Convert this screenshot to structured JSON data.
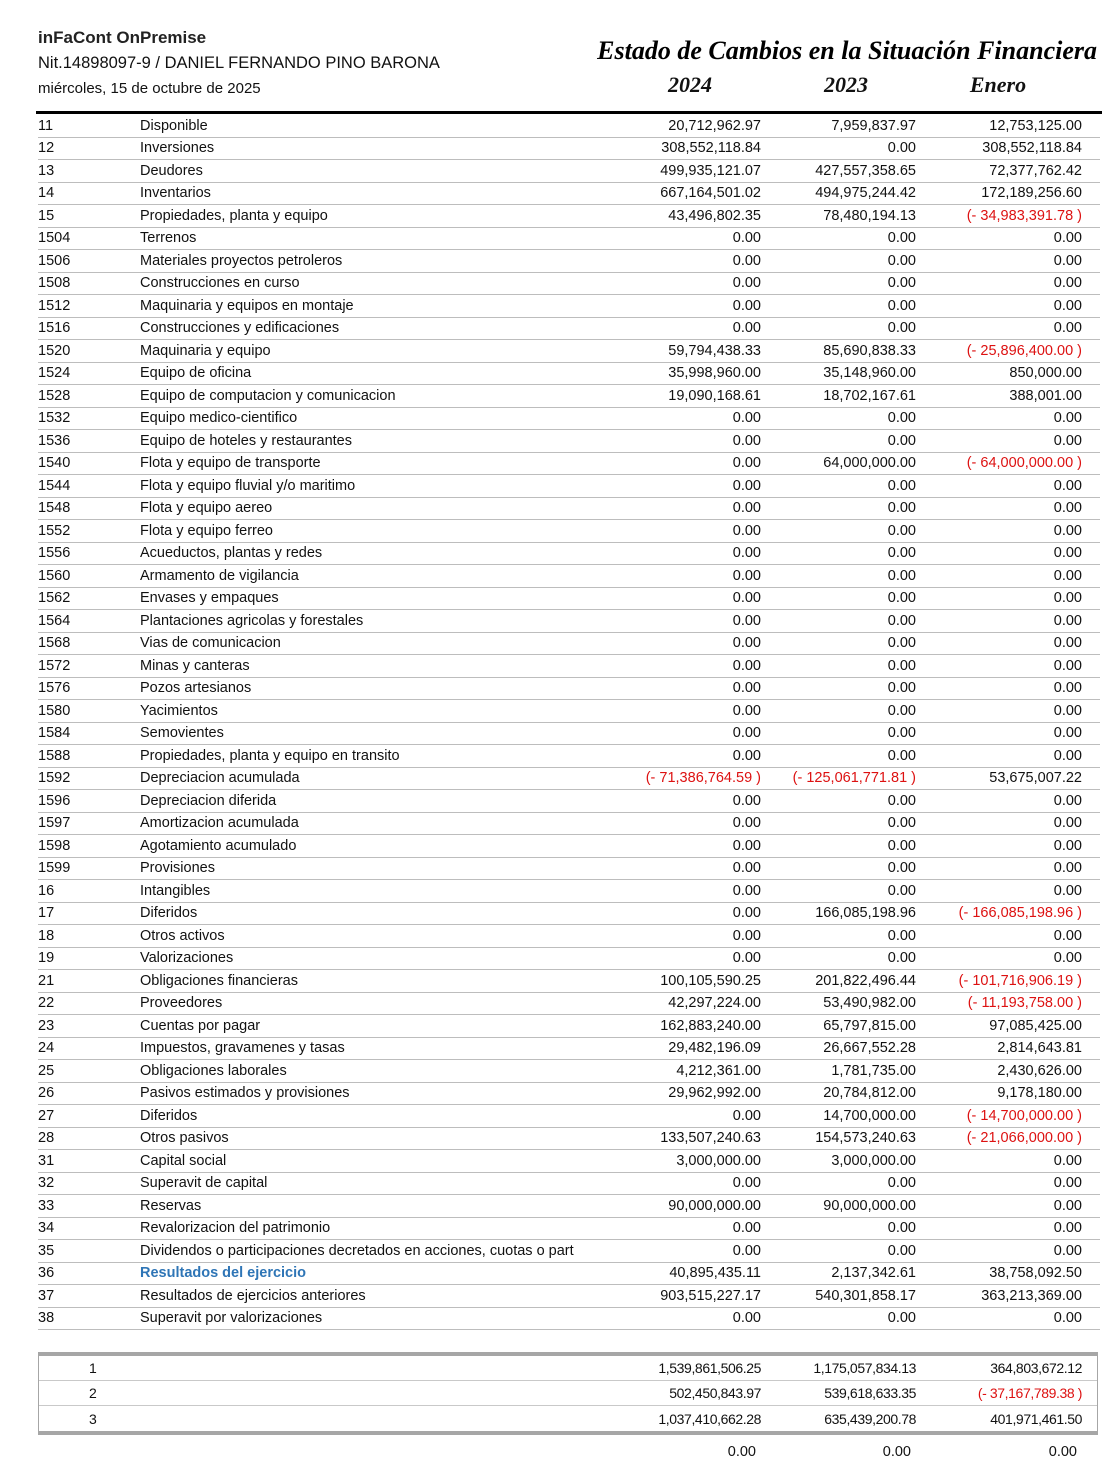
{
  "header": {
    "app_title": "inFaCont OnPremise",
    "owner_line": "Nit.14898097-9 / DANIEL FERNANDO PINO BARONA",
    "date_line": "miércoles, 15 de octubre de 2025",
    "report_title": "Estado de Cambios en la Situación Financiera",
    "columns": [
      "2024",
      "2023",
      "Enero"
    ]
  },
  "colors": {
    "negative": "#dd1111",
    "highlight_blue": "#2e75b6"
  },
  "rows": [
    {
      "code": "11",
      "name": "Disponible",
      "values": [
        "20,712,962.97",
        "7,959,837.97",
        "12,753,125.00"
      ]
    },
    {
      "code": "12",
      "name": "Inversiones",
      "values": [
        "308,552,118.84",
        "0.00",
        "308,552,118.84"
      ]
    },
    {
      "code": "13",
      "name": "Deudores",
      "values": [
        "499,935,121.07",
        "427,557,358.65",
        "72,377,762.42"
      ]
    },
    {
      "code": "14",
      "name": "Inventarios",
      "values": [
        "667,164,501.02",
        "494,975,244.42",
        "172,189,256.60"
      ]
    },
    {
      "code": "15",
      "name": "Propiedades, planta y equipo",
      "values": [
        "43,496,802.35",
        "78,480,194.13",
        "(- 34,983,391.78 )"
      ]
    },
    {
      "code": "1504",
      "name": "Terrenos",
      "values": [
        "0.00",
        "0.00",
        "0.00"
      ]
    },
    {
      "code": "1506",
      "name": "Materiales proyectos petroleros",
      "values": [
        "0.00",
        "0.00",
        "0.00"
      ]
    },
    {
      "code": "1508",
      "name": "Construcciones en curso",
      "values": [
        "0.00",
        "0.00",
        "0.00"
      ]
    },
    {
      "code": "1512",
      "name": "Maquinaria y equipos en montaje",
      "values": [
        "0.00",
        "0.00",
        "0.00"
      ]
    },
    {
      "code": "1516",
      "name": "Construcciones y edificaciones",
      "values": [
        "0.00",
        "0.00",
        "0.00"
      ]
    },
    {
      "code": "1520",
      "name": "Maquinaria y equipo",
      "values": [
        "59,794,438.33",
        "85,690,838.33",
        "(- 25,896,400.00 )"
      ]
    },
    {
      "code": "1524",
      "name": "Equipo de oficina",
      "values": [
        "35,998,960.00",
        "35,148,960.00",
        "850,000.00"
      ]
    },
    {
      "code": "1528",
      "name": "Equipo de computacion y comunicacion",
      "values": [
        "19,090,168.61",
        "18,702,167.61",
        "388,001.00"
      ]
    },
    {
      "code": "1532",
      "name": "Equipo medico-cientifico",
      "values": [
        "0.00",
        "0.00",
        "0.00"
      ]
    },
    {
      "code": "1536",
      "name": "Equipo de hoteles y restaurantes",
      "values": [
        "0.00",
        "0.00",
        "0.00"
      ]
    },
    {
      "code": "1540",
      "name": "Flota y equipo de transporte",
      "values": [
        "0.00",
        "64,000,000.00",
        "(- 64,000,000.00 )"
      ]
    },
    {
      "code": "1544",
      "name": "Flota y equipo fluvial y/o maritimo",
      "values": [
        "0.00",
        "0.00",
        "0.00"
      ]
    },
    {
      "code": "1548",
      "name": "Flota y equipo aereo",
      "values": [
        "0.00",
        "0.00",
        "0.00"
      ]
    },
    {
      "code": "1552",
      "name": "Flota y equipo ferreo",
      "values": [
        "0.00",
        "0.00",
        "0.00"
      ]
    },
    {
      "code": "1556",
      "name": "Acueductos, plantas y redes",
      "values": [
        "0.00",
        "0.00",
        "0.00"
      ]
    },
    {
      "code": "1560",
      "name": "Armamento de vigilancia",
      "values": [
        "0.00",
        "0.00",
        "0.00"
      ]
    },
    {
      "code": "1562",
      "name": "Envases y empaques",
      "values": [
        "0.00",
        "0.00",
        "0.00"
      ]
    },
    {
      "code": "1564",
      "name": "Plantaciones agricolas y forestales",
      "values": [
        "0.00",
        "0.00",
        "0.00"
      ]
    },
    {
      "code": "1568",
      "name": "Vias de comunicacion",
      "values": [
        "0.00",
        "0.00",
        "0.00"
      ]
    },
    {
      "code": "1572",
      "name": "Minas y canteras",
      "values": [
        "0.00",
        "0.00",
        "0.00"
      ]
    },
    {
      "code": "1576",
      "name": "Pozos artesianos",
      "values": [
        "0.00",
        "0.00",
        "0.00"
      ]
    },
    {
      "code": "1580",
      "name": "Yacimientos",
      "values": [
        "0.00",
        "0.00",
        "0.00"
      ]
    },
    {
      "code": "1584",
      "name": "Semovientes",
      "values": [
        "0.00",
        "0.00",
        "0.00"
      ]
    },
    {
      "code": "1588",
      "name": "Propiedades, planta y equipo en transito",
      "values": [
        "0.00",
        "0.00",
        "0.00"
      ]
    },
    {
      "code": "1592",
      "name": "Depreciacion acumulada",
      "values": [
        "(- 71,386,764.59 )",
        "(- 125,061,771.81 )",
        "53,675,007.22"
      ]
    },
    {
      "code": "1596",
      "name": "Depreciacion diferida",
      "values": [
        "0.00",
        "0.00",
        "0.00"
      ]
    },
    {
      "code": "1597",
      "name": "Amortizacion acumulada",
      "values": [
        "0.00",
        "0.00",
        "0.00"
      ]
    },
    {
      "code": "1598",
      "name": "Agotamiento acumulado",
      "values": [
        "0.00",
        "0.00",
        "0.00"
      ]
    },
    {
      "code": "1599",
      "name": "Provisiones",
      "values": [
        "0.00",
        "0.00",
        "0.00"
      ]
    },
    {
      "code": "16",
      "name": "Intangibles",
      "values": [
        "0.00",
        "0.00",
        "0.00"
      ]
    },
    {
      "code": "17",
      "name": "Diferidos",
      "values": [
        "0.00",
        "166,085,198.96",
        "(- 166,085,198.96 )"
      ]
    },
    {
      "code": "18",
      "name": "Otros activos",
      "values": [
        "0.00",
        "0.00",
        "0.00"
      ]
    },
    {
      "code": "19",
      "name": "Valorizaciones",
      "values": [
        "0.00",
        "0.00",
        "0.00"
      ]
    },
    {
      "code": "21",
      "name": "Obligaciones financieras",
      "values": [
        "100,105,590.25",
        "201,822,496.44",
        "(- 101,716,906.19 )"
      ]
    },
    {
      "code": "22",
      "name": "Proveedores",
      "values": [
        "42,297,224.00",
        "53,490,982.00",
        "(- 11,193,758.00 )"
      ]
    },
    {
      "code": "23",
      "name": "Cuentas por pagar",
      "values": [
        "162,883,240.00",
        "65,797,815.00",
        "97,085,425.00"
      ]
    },
    {
      "code": "24",
      "name": "Impuestos, gravamenes y tasas",
      "values": [
        "29,482,196.09",
        "26,667,552.28",
        "2,814,643.81"
      ]
    },
    {
      "code": "25",
      "name": "Obligaciones laborales",
      "values": [
        "4,212,361.00",
        "1,781,735.00",
        "2,430,626.00"
      ]
    },
    {
      "code": "26",
      "name": "Pasivos estimados y provisiones",
      "values": [
        "29,962,992.00",
        "20,784,812.00",
        "9,178,180.00"
      ]
    },
    {
      "code": "27",
      "name": "Diferidos",
      "values": [
        "0.00",
        "14,700,000.00",
        "(- 14,700,000.00 )"
      ]
    },
    {
      "code": "28",
      "name": "Otros pasivos",
      "values": [
        "133,507,240.63",
        "154,573,240.63",
        "(- 21,066,000.00 )"
      ]
    },
    {
      "code": "31",
      "name": "Capital social",
      "values": [
        "3,000,000.00",
        "3,000,000.00",
        "0.00"
      ]
    },
    {
      "code": "32",
      "name": "Superavit de capital",
      "values": [
        "0.00",
        "0.00",
        "0.00"
      ]
    },
    {
      "code": "33",
      "name": "Reservas",
      "values": [
        "90,000,000.00",
        "90,000,000.00",
        "0.00"
      ]
    },
    {
      "code": "34",
      "name": "Revalorizacion del patrimonio",
      "values": [
        "0.00",
        "0.00",
        "0.00"
      ]
    },
    {
      "code": "35",
      "name": "Dividendos o participaciones decretados en acciones, cuotas o part",
      "values": [
        "0.00",
        "0.00",
        "0.00"
      ]
    },
    {
      "code": "36",
      "name": "Resultados del ejercicio",
      "highlight": true,
      "values": [
        "40,895,435.11",
        "2,137,342.61",
        "38,758,092.50"
      ]
    },
    {
      "code": "37",
      "name": "Resultados de ejercicios anteriores",
      "values": [
        "903,515,227.17",
        "540,301,858.17",
        "363,213,369.00"
      ]
    },
    {
      "code": "38",
      "name": "Superavit por valorizaciones",
      "values": [
        "0.00",
        "0.00",
        "0.00"
      ]
    }
  ],
  "summary_rows": [
    {
      "code": "1",
      "values": [
        "1,539,861,506.25",
        "1,175,057,834.13",
        "364,803,672.12"
      ]
    },
    {
      "code": "2",
      "values": [
        "502,450,843.97",
        "539,618,633.35",
        "(- 37,167,789.38 )"
      ]
    },
    {
      "code": "3",
      "values": [
        "1,037,410,662.28",
        "635,439,200.78",
        "401,971,461.50"
      ]
    }
  ],
  "footer_totals": [
    "0.00",
    "0.00",
    "0.00"
  ]
}
